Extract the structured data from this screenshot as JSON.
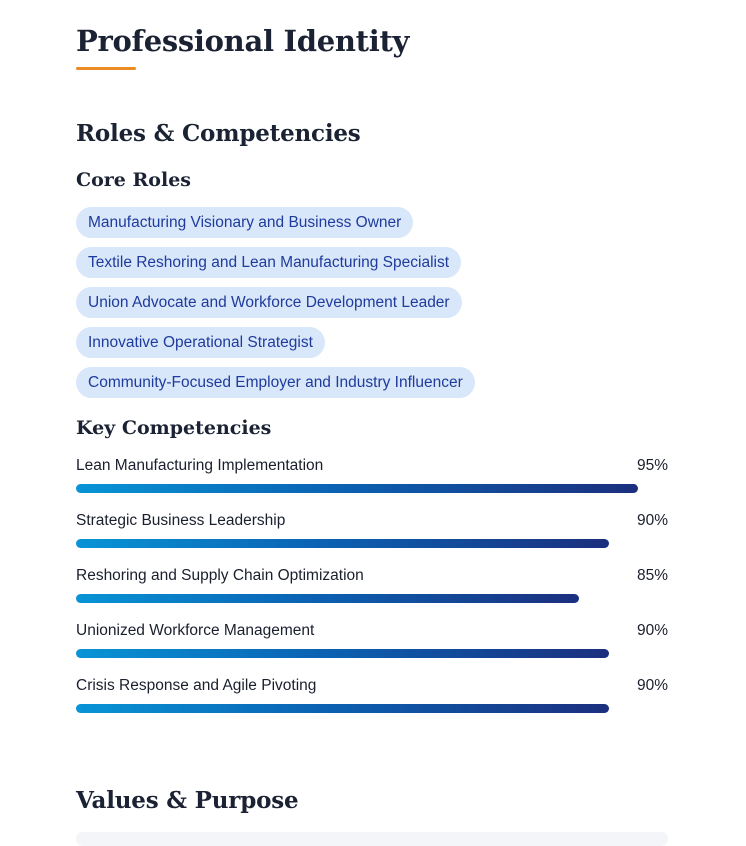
{
  "page": {
    "title": "Professional Identity",
    "accent_color": "#ec8a24"
  },
  "roles_section": {
    "title": "Roles & Competencies",
    "core_roles_title": "Core Roles",
    "core_roles": [
      "Manufacturing Visionary and Business Owner",
      "Textile Reshoring and Lean Manufacturing Specialist",
      "Union Advocate and Workforce Development Leader",
      "Innovative Operational Strategist",
      "Community-Focused Employer and Industry Influencer"
    ],
    "competencies_title": "Key Competencies",
    "competencies": [
      {
        "name": "Lean Manufacturing Implementation",
        "value": 95,
        "label": "95%"
      },
      {
        "name": "Strategic Business Leadership",
        "value": 90,
        "label": "90%"
      },
      {
        "name": "Reshoring and Supply Chain Optimization",
        "value": 85,
        "label": "85%"
      },
      {
        "name": "Unionized Workforce Management",
        "value": 90,
        "label": "90%"
      },
      {
        "name": "Crisis Response and Agile Pivoting",
        "value": 90,
        "label": "90%"
      }
    ]
  },
  "values_section": {
    "title": "Values & Purpose"
  }
}
